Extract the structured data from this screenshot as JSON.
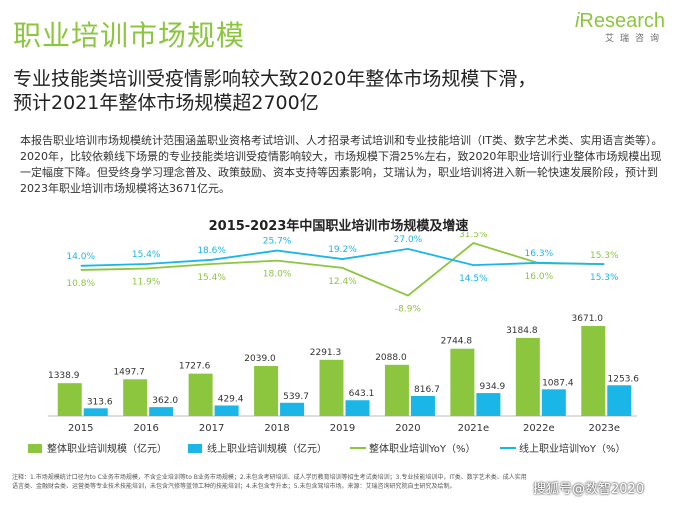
{
  "page": {
    "section_title": "职业培训市场规模",
    "headline_line1": "专业技能类培训受疫情影响较大致2020年整体市场规模下滑，",
    "headline_line2": "预计2021年整体市场规模超2700亿",
    "paragraph": "本报告职业培训市场规模统计范围涵盖职业资格考试培训、人才招录考试培训和专业技能培训（IT类、数字艺术类、实用语言类等）。2020年，比较依赖线下场景的专业技能类培训受疫情影响较大，市场规模下滑25%左右，致2020年职业培训行业整体市场规模出现一定幅度下降。但受终身学习理念普及、政策鼓励、资本支持等因素影响，艾瑞认为，职业培训将进入新一轮快速发展阶段，预计到2023年职业培训市场规模将达3671亿元。",
    "footnote": "注释：1.市场规模统计口径为to C业务市场规模，不含企业培训等to B业务市场规模；2.未包含考研培训、成人学历教育培训等招生考试类培训；3.专业技能培训中，IT类、数字艺术类、成人实用语言类、金融财会类、运营类等专业技术技能培训，未包含汽修等蓝领工种的技能培训；4.未包含专升本；5.未包含驾培市场。来源：艾瑞咨询研究院自主研究及绘制。",
    "watermark": "搜狐号@数智2020"
  },
  "logo": {
    "brand_i": "i",
    "brand_rest": "Research",
    "cn": "艾瑞咨询"
  },
  "colors": {
    "green": "#8cc63f",
    "blue": "#1ab6e8",
    "axis": "#bbbbbb"
  },
  "chart_data": {
    "type": "bar",
    "title": "2015-2023年中国职业培训市场规模及增速",
    "categories": [
      "2015",
      "2016",
      "2017",
      "2018",
      "2019",
      "2020",
      "2021e",
      "2022e",
      "2023e"
    ],
    "series": [
      {
        "name": "整体职业培训规模（亿元）",
        "kind": "bar",
        "color": "#8cc63f",
        "values": [
          1338.9,
          1497.7,
          1727.6,
          2039.0,
          2291.3,
          2088.0,
          2744.8,
          3184.8,
          3671.0
        ],
        "labels": [
          "1338.9",
          "1497.7",
          "1727.6",
          "2039.0",
          "2291.3",
          "2088.0",
          "2744.8",
          "3184.8",
          "3671.0"
        ]
      },
      {
        "name": "线上职业培训规模（亿元）",
        "kind": "bar",
        "color": "#1ab6e8",
        "values": [
          313.6,
          362.0,
          429.4,
          539.7,
          643.1,
          816.7,
          934.9,
          1087.4,
          1253.6
        ],
        "labels": [
          "313.6",
          "362.0",
          "429.4",
          "539.7",
          "643.1",
          "816.7",
          "934.9",
          "1087.4",
          "1253.6"
        ]
      },
      {
        "name": "整体职业培训YoY（%）",
        "kind": "line",
        "color": "#8cc63f",
        "values": [
          10.8,
          11.9,
          15.4,
          18.0,
          12.4,
          -8.9,
          31.5,
          16.0,
          15.3
        ],
        "labels": [
          "10.8%",
          "11.9%",
          "15.4%",
          "18.0%",
          "12.4%",
          "-8.9%",
          "31.5%",
          "16.0%",
          "15.3%"
        ]
      },
      {
        "name": "线上职业培训YoY（%）",
        "kind": "line",
        "color": "#1ab6e8",
        "values": [
          14.0,
          15.4,
          18.6,
          25.7,
          19.2,
          27.0,
          14.5,
          16.3,
          15.3
        ],
        "labels": [
          "14.0%",
          "15.4%",
          "18.6%",
          "25.7%",
          "19.2%",
          "27.0%",
          "14.5%",
          "16.3%",
          "15.3%"
        ]
      }
    ]
  }
}
